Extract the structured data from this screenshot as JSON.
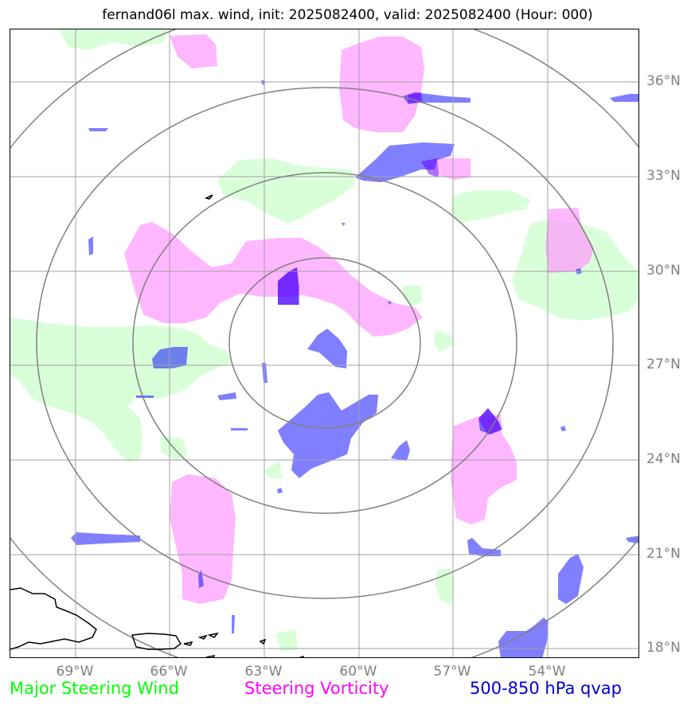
{
  "title": "fernand06l max. wind, init: 2025082400, valid: 2025082400 (Hour: 000)",
  "map": {
    "lon_range_deg": [
      -71,
      -51
    ],
    "lat_range_deg": [
      17.5,
      37.5
    ],
    "latitude_labels": [
      "36°N",
      "33°N",
      "30°N",
      "27°N",
      "24°N",
      "21°N",
      "18°N"
    ],
    "longitude_labels": [
      "69°W",
      "66°W",
      "63°W",
      "60°W",
      "57°W",
      "54°W"
    ],
    "range_rings": "concentric circles centered near 61°W, 27.8°N",
    "colors": {
      "steering_wind": "#ccffcc",
      "steering_vorticity": "#ff99ff",
      "qvap": "#0000ff",
      "grid": "#a0a0a0",
      "rings": "#808080",
      "coast": "#000000"
    }
  },
  "legend": {
    "wind": {
      "label": "Major Steering Wind",
      "color": "#00ff00"
    },
    "vorticity": {
      "label": "Steering Vorticity",
      "color": "#ff00ff"
    },
    "qvap": {
      "label": "500-850 hPa qvap",
      "color": "#0000cc"
    }
  }
}
